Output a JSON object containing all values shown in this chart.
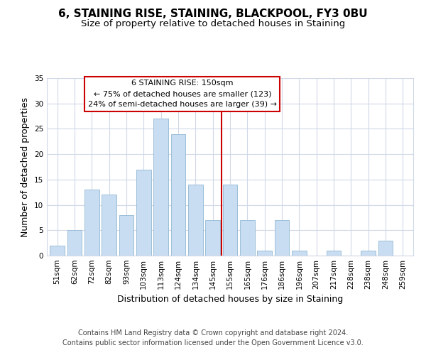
{
  "title": "6, STAINING RISE, STAINING, BLACKPOOL, FY3 0BU",
  "subtitle": "Size of property relative to detached houses in Staining",
  "xlabel": "Distribution of detached houses by size in Staining",
  "ylabel": "Number of detached properties",
  "footer_line1": "Contains HM Land Registry data © Crown copyright and database right 2024.",
  "footer_line2": "Contains public sector information licensed under the Open Government Licence v3.0.",
  "bar_labels": [
    "51sqm",
    "62sqm",
    "72sqm",
    "82sqm",
    "93sqm",
    "103sqm",
    "113sqm",
    "124sqm",
    "134sqm",
    "145sqm",
    "155sqm",
    "165sqm",
    "176sqm",
    "186sqm",
    "196sqm",
    "207sqm",
    "217sqm",
    "228sqm",
    "238sqm",
    "248sqm",
    "259sqm"
  ],
  "bar_values": [
    2,
    5,
    13,
    12,
    8,
    17,
    27,
    24,
    14,
    7,
    14,
    7,
    1,
    7,
    1,
    0,
    1,
    0,
    1,
    3,
    0
  ],
  "bar_color": "#c9ddf2",
  "bar_edge_color": "#9bbfd8",
  "property_line_x": 9.5,
  "annotation_title": "6 STAINING RISE: 150sqm",
  "annotation_line1": "← 75% of detached houses are smaller (123)",
  "annotation_line2": "24% of semi-detached houses are larger (39) →",
  "annotation_box_color": "#ffffff",
  "annotation_box_edge_color": "#cc0000",
  "vline_color": "#cc0000",
  "ylim": [
    0,
    35
  ],
  "yticks": [
    0,
    5,
    10,
    15,
    20,
    25,
    30,
    35
  ],
  "title_fontsize": 11,
  "subtitle_fontsize": 9.5,
  "xlabel_fontsize": 9,
  "ylabel_fontsize": 9,
  "tick_fontsize": 7.5,
  "annotation_fontsize": 8,
  "footer_fontsize": 7,
  "background_color": "#ffffff",
  "grid_color": "#d0d8e8"
}
